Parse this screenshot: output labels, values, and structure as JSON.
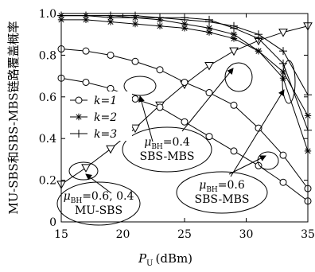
{
  "chart_data": {
    "type": "line",
    "xlabel_main": "P",
    "xlabel_sub": "U",
    "xlabel_unit": "(dBm)",
    "ylabel": "MU-SBS和SBS-MBS链路覆盖概率",
    "xlim": [
      15,
      35
    ],
    "ylim": [
      0,
      1
    ],
    "x_ticks": [
      "15",
      "20",
      "25",
      "30",
      "35"
    ],
    "y_ticks": [
      "0",
      "0.2",
      "0.4",
      "0.6",
      "0.8",
      "1.0"
    ],
    "x": [
      15,
      17,
      19,
      21,
      23,
      25,
      27,
      29,
      31,
      33,
      35
    ],
    "legend": [
      {
        "marker": "circle",
        "label": "k=1"
      },
      {
        "marker": "asterisk",
        "label": "k=2"
      },
      {
        "marker": "plus",
        "label": "k=3"
      }
    ],
    "series": [
      {
        "group": "MU-SBS",
        "marker": "triangle",
        "values": [
          0.18,
          0.26,
          0.35,
          0.45,
          0.56,
          0.66,
          0.75,
          0.82,
          0.87,
          0.91,
          0.94
        ]
      },
      {
        "group": "SBS-MBS 0.4",
        "marker": "circle",
        "values": [
          0.83,
          0.82,
          0.8,
          0.77,
          0.73,
          0.67,
          0.62,
          0.56,
          0.45,
          0.32,
          0.16
        ]
      },
      {
        "group": "SBS-MBS 0.4",
        "marker": "asterisk",
        "values": [
          0.97,
          0.97,
          0.96,
          0.95,
          0.94,
          0.93,
          0.91,
          0.88,
          0.82,
          0.72,
          0.51
        ]
      },
      {
        "group": "SBS-MBS 0.4",
        "marker": "plus",
        "values": [
          0.99,
          0.99,
          0.99,
          0.98,
          0.98,
          0.97,
          0.96,
          0.94,
          0.9,
          0.82,
          0.61
        ]
      },
      {
        "group": "SBS-MBS 0.6",
        "marker": "circle",
        "values": [
          0.69,
          0.67,
          0.64,
          0.59,
          0.55,
          0.48,
          0.41,
          0.34,
          0.27,
          0.19,
          0.1
        ]
      },
      {
        "group": "SBS-MBS 0.6",
        "marker": "asterisk",
        "values": [
          0.99,
          0.99,
          0.98,
          0.98,
          0.97,
          0.95,
          0.93,
          0.9,
          0.82,
          0.69,
          0.34
        ]
      },
      {
        "group": "SBS-MBS 0.6",
        "marker": "plus",
        "values": [
          0.99,
          0.99,
          0.99,
          0.99,
          0.98,
          0.98,
          0.97,
          0.93,
          0.88,
          0.76,
          0.44
        ]
      }
    ],
    "annotations": [
      {
        "mu": "μ",
        "sub": "BH",
        "value": "=0.4",
        "line2": "SBS-MBS"
      },
      {
        "mu": "μ",
        "sub": "BH",
        "value": "=0.6, 0.4",
        "line2": "MU-SBS"
      },
      {
        "mu": "μ",
        "sub": "BH",
        "value": "=0.6",
        "line2": "SBS-MBS"
      }
    ]
  }
}
